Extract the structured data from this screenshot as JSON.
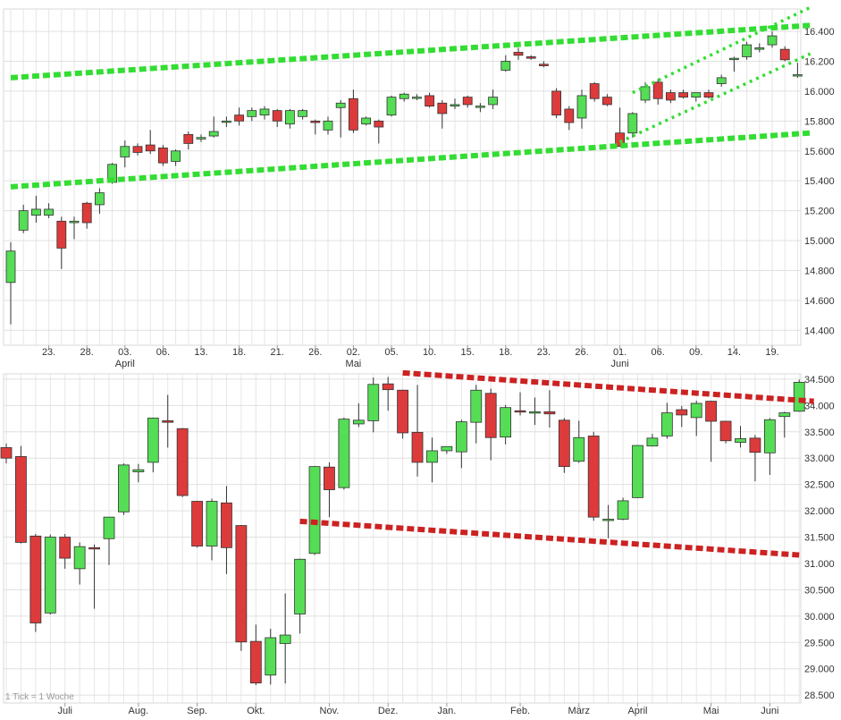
{
  "chart_data": [
    {
      "type": "candlestick",
      "panel": "daily",
      "ylim": [
        14300,
        16550
      ],
      "yticks": [
        14400,
        14600,
        14800,
        15000,
        15200,
        15400,
        15600,
        15800,
        16000,
        16200,
        16400
      ],
      "ytick_labels": [
        "14.400",
        "14.600",
        "14.800",
        "15.000",
        "15.200",
        "15.400",
        "15.600",
        "15.800",
        "16.000",
        "16.200",
        "16.400"
      ],
      "xtick_labels": [
        "23.",
        "28.",
        "03.",
        "06.",
        "13.",
        "18.",
        "21.",
        "26.",
        "02.",
        "05.",
        "10.",
        "15.",
        "18.",
        "23.",
        "26.",
        "01.",
        "06.",
        "09.",
        "14.",
        "19."
      ],
      "xtick_index": [
        3,
        6,
        9,
        12,
        15,
        18,
        21,
        24,
        27,
        30,
        33,
        36,
        39,
        42,
        45,
        48,
        51,
        54,
        57,
        60
      ],
      "month_labels": [
        "April",
        "Mai",
        "Juni"
      ],
      "month_index": [
        9,
        27,
        48
      ],
      "candles": [
        {
          "o": 14720,
          "h": 14990,
          "l": 14440,
          "c": 14930
        },
        {
          "o": 15070,
          "h": 15240,
          "l": 15050,
          "c": 15200
        },
        {
          "o": 15170,
          "h": 15300,
          "l": 15120,
          "c": 15210
        },
        {
          "o": 15170,
          "h": 15250,
          "l": 15150,
          "c": 15210
        },
        {
          "o": 15130,
          "h": 15160,
          "l": 14810,
          "c": 14950
        },
        {
          "o": 15120,
          "h": 15160,
          "l": 15010,
          "c": 15130
        },
        {
          "o": 15250,
          "h": 15260,
          "l": 15080,
          "c": 15120
        },
        {
          "o": 15240,
          "h": 15350,
          "l": 15180,
          "c": 15320
        },
        {
          "o": 15390,
          "h": 15520,
          "l": 15380,
          "c": 15510
        },
        {
          "o": 15560,
          "h": 15670,
          "l": 15490,
          "c": 15630
        },
        {
          "o": 15630,
          "h": 15650,
          "l": 15570,
          "c": 15590
        },
        {
          "o": 15640,
          "h": 15740,
          "l": 15580,
          "c": 15600
        },
        {
          "o": 15620,
          "h": 15640,
          "l": 15500,
          "c": 15520
        },
        {
          "o": 15530,
          "h": 15610,
          "l": 15500,
          "c": 15600
        },
        {
          "o": 15710,
          "h": 15730,
          "l": 15610,
          "c": 15650
        },
        {
          "o": 15680,
          "h": 15710,
          "l": 15660,
          "c": 15690
        },
        {
          "o": 15700,
          "h": 15830,
          "l": 15690,
          "c": 15730
        },
        {
          "o": 15800,
          "h": 15830,
          "l": 15760,
          "c": 15800
        },
        {
          "o": 15840,
          "h": 15890,
          "l": 15770,
          "c": 15800
        },
        {
          "o": 15830,
          "h": 15890,
          "l": 15800,
          "c": 15870
        },
        {
          "o": 15840,
          "h": 15900,
          "l": 15810,
          "c": 15880
        },
        {
          "o": 15870,
          "h": 15880,
          "l": 15760,
          "c": 15800
        },
        {
          "o": 15780,
          "h": 15880,
          "l": 15750,
          "c": 15870
        },
        {
          "o": 15830,
          "h": 15880,
          "l": 15810,
          "c": 15870
        },
        {
          "o": 15800,
          "h": 15810,
          "l": 15710,
          "c": 15790
        },
        {
          "o": 15740,
          "h": 15830,
          "l": 15710,
          "c": 15800
        },
        {
          "o": 15890,
          "h": 15940,
          "l": 15690,
          "c": 15920
        },
        {
          "o": 15950,
          "h": 16010,
          "l": 15720,
          "c": 15740
        },
        {
          "o": 15780,
          "h": 15830,
          "l": 15770,
          "c": 15820
        },
        {
          "o": 15800,
          "h": 15810,
          "l": 15650,
          "c": 15760
        },
        {
          "o": 15840,
          "h": 15970,
          "l": 15830,
          "c": 15960
        },
        {
          "o": 15950,
          "h": 15990,
          "l": 15930,
          "c": 15980
        },
        {
          "o": 15960,
          "h": 15980,
          "l": 15940,
          "c": 15960
        },
        {
          "o": 15970,
          "h": 15990,
          "l": 15890,
          "c": 15900
        },
        {
          "o": 15920,
          "h": 15940,
          "l": 15750,
          "c": 15850
        },
        {
          "o": 15900,
          "h": 15950,
          "l": 15880,
          "c": 15910
        },
        {
          "o": 15960,
          "h": 15970,
          "l": 15890,
          "c": 15910
        },
        {
          "o": 15900,
          "h": 15920,
          "l": 15860,
          "c": 15900
        },
        {
          "o": 15910,
          "h": 16010,
          "l": 15880,
          "c": 15960
        },
        {
          "o": 16140,
          "h": 16240,
          "l": 16130,
          "c": 16200
        },
        {
          "o": 16260,
          "h": 16290,
          "l": 16210,
          "c": 16240
        },
        {
          "o": 16230,
          "h": 16240,
          "l": 16210,
          "c": 16220
        },
        {
          "o": 16180,
          "h": 16200,
          "l": 16160,
          "c": 16170
        },
        {
          "o": 16000,
          "h": 16020,
          "l": 15820,
          "c": 15840
        },
        {
          "o": 15880,
          "h": 15900,
          "l": 15740,
          "c": 15790
        },
        {
          "o": 15820,
          "h": 16010,
          "l": 15750,
          "c": 15970
        },
        {
          "o": 16050,
          "h": 16060,
          "l": 15930,
          "c": 15950
        },
        {
          "o": 15960,
          "h": 15980,
          "l": 15900,
          "c": 15910
        },
        {
          "o": 15720,
          "h": 15890,
          "l": 15650,
          "c": 15630
        },
        {
          "o": 15720,
          "h": 15860,
          "l": 15690,
          "c": 15850
        },
        {
          "o": 15940,
          "h": 16060,
          "l": 15920,
          "c": 16030
        },
        {
          "o": 16060,
          "h": 16080,
          "l": 15910,
          "c": 15950
        },
        {
          "o": 15990,
          "h": 16010,
          "l": 15920,
          "c": 15940
        },
        {
          "o": 15990,
          "h": 16010,
          "l": 15950,
          "c": 15960
        },
        {
          "o": 15960,
          "h": 15990,
          "l": 15930,
          "c": 15990
        },
        {
          "o": 15990,
          "h": 16010,
          "l": 15950,
          "c": 15960
        },
        {
          "o": 16050,
          "h": 16110,
          "l": 16030,
          "c": 16090
        },
        {
          "o": 16220,
          "h": 16230,
          "l": 16130,
          "c": 16220
        },
        {
          "o": 16230,
          "h": 16330,
          "l": 16210,
          "c": 16310
        },
        {
          "o": 16280,
          "h": 16320,
          "l": 16260,
          "c": 16290
        },
        {
          "o": 16310,
          "h": 16400,
          "l": 16290,
          "c": 16370
        },
        {
          "o": 16280,
          "h": 16300,
          "l": 16200,
          "c": 16210
        },
        {
          "o": 16110,
          "h": 16190,
          "l": 16090,
          "c": 16110
        }
      ],
      "trendlines": [
        {
          "color": "#33dd33",
          "style": "dashed",
          "points": [
            [
              0,
              16090
            ],
            [
              63,
              16440
            ]
          ]
        },
        {
          "color": "#33dd33",
          "style": "dashed",
          "points": [
            [
              0,
              15360
            ],
            [
              63,
              15720
            ]
          ]
        },
        {
          "color": "#33dd33",
          "style": "dotted",
          "points": [
            [
              48,
              15660
            ],
            [
              63,
              16250
            ]
          ]
        },
        {
          "color": "#33dd33",
          "style": "dotted",
          "points": [
            [
              49,
              15990
            ],
            [
              63,
              16560
            ]
          ]
        }
      ]
    },
    {
      "type": "candlestick",
      "panel": "weekly",
      "ylim": [
        28350,
        34600
      ],
      "yticks": [
        28500,
        29000,
        29500,
        30000,
        30500,
        31000,
        31500,
        32000,
        32500,
        33000,
        33500,
        34000,
        34500
      ],
      "ytick_labels": [
        "28.500",
        "29.000",
        "29.500",
        "30.000",
        "30.500",
        "31.000",
        "31.500",
        "32.000",
        "32.500",
        "33.000",
        "33.500",
        "34.000",
        "34.500"
      ],
      "xtick_labels": [
        "Juli",
        "Aug.",
        "Sep.",
        "Okt.",
        "Nov.",
        "Dez.",
        "Jan.",
        "Feb.",
        "März",
        "April",
        "Mai",
        "Juni"
      ],
      "xtick_index": [
        4,
        9,
        13,
        17,
        22,
        26,
        30,
        35,
        39,
        43,
        48,
        52
      ],
      "note": "1 Tick = 1 Woche",
      "candles": [
        {
          "o": 33200,
          "h": 33280,
          "l": 32900,
          "c": 33000
        },
        {
          "o": 33030,
          "h": 33230,
          "l": 31380,
          "c": 31400
        },
        {
          "o": 31520,
          "h": 31560,
          "l": 29700,
          "c": 29870
        },
        {
          "o": 30060,
          "h": 31550,
          "l": 30030,
          "c": 31500
        },
        {
          "o": 31500,
          "h": 31560,
          "l": 30900,
          "c": 31100
        },
        {
          "o": 30900,
          "h": 31400,
          "l": 30600,
          "c": 31320
        },
        {
          "o": 31300,
          "h": 31360,
          "l": 30140,
          "c": 31290
        },
        {
          "o": 31470,
          "h": 31880,
          "l": 30970,
          "c": 31880
        },
        {
          "o": 31980,
          "h": 32900,
          "l": 31920,
          "c": 32870
        },
        {
          "o": 32740,
          "h": 32890,
          "l": 32540,
          "c": 32780
        },
        {
          "o": 32920,
          "h": 33770,
          "l": 32730,
          "c": 33760
        },
        {
          "o": 33710,
          "h": 34200,
          "l": 33200,
          "c": 33680
        },
        {
          "o": 33560,
          "h": 33570,
          "l": 32260,
          "c": 32290
        },
        {
          "o": 32180,
          "h": 32190,
          "l": 31300,
          "c": 31330
        },
        {
          "o": 31330,
          "h": 32230,
          "l": 31060,
          "c": 32180
        },
        {
          "o": 32150,
          "h": 32470,
          "l": 30800,
          "c": 31300
        },
        {
          "o": 31720,
          "h": 31730,
          "l": 29340,
          "c": 29510
        },
        {
          "o": 29520,
          "h": 29840,
          "l": 28690,
          "c": 28730
        },
        {
          "o": 28880,
          "h": 29760,
          "l": 28700,
          "c": 29590
        },
        {
          "o": 29480,
          "h": 30430,
          "l": 28720,
          "c": 29640
        },
        {
          "o": 30040,
          "h": 31090,
          "l": 29670,
          "c": 31080
        },
        {
          "o": 31190,
          "h": 32850,
          "l": 31160,
          "c": 32840
        },
        {
          "o": 32830,
          "h": 32920,
          "l": 31880,
          "c": 32400
        },
        {
          "o": 32440,
          "h": 33770,
          "l": 32400,
          "c": 33740
        },
        {
          "o": 33650,
          "h": 34040,
          "l": 33590,
          "c": 33720
        },
        {
          "o": 33710,
          "h": 34530,
          "l": 33490,
          "c": 34400
        },
        {
          "o": 34410,
          "h": 34540,
          "l": 33900,
          "c": 34300
        },
        {
          "o": 34290,
          "h": 34300,
          "l": 33370,
          "c": 33480
        },
        {
          "o": 33490,
          "h": 34390,
          "l": 32650,
          "c": 32920
        },
        {
          "o": 32920,
          "h": 33390,
          "l": 32540,
          "c": 33140
        },
        {
          "o": 33140,
          "h": 33220,
          "l": 33080,
          "c": 33220
        },
        {
          "o": 33120,
          "h": 33730,
          "l": 32810,
          "c": 33690
        },
        {
          "o": 33680,
          "h": 34390,
          "l": 33280,
          "c": 34290
        },
        {
          "o": 34230,
          "h": 34320,
          "l": 32960,
          "c": 33390
        },
        {
          "o": 33400,
          "h": 34010,
          "l": 33260,
          "c": 33960
        },
        {
          "o": 33900,
          "h": 34250,
          "l": 33810,
          "c": 33890
        },
        {
          "o": 33880,
          "h": 34150,
          "l": 33630,
          "c": 33880
        },
        {
          "o": 33880,
          "h": 34290,
          "l": 33580,
          "c": 33840
        },
        {
          "o": 33720,
          "h": 33760,
          "l": 32720,
          "c": 32840
        },
        {
          "o": 32940,
          "h": 33710,
          "l": 32910,
          "c": 33390
        },
        {
          "o": 33420,
          "h": 33500,
          "l": 31810,
          "c": 31880
        },
        {
          "o": 31820,
          "h": 32110,
          "l": 31480,
          "c": 31840
        },
        {
          "o": 31840,
          "h": 32250,
          "l": 31820,
          "c": 32190
        },
        {
          "o": 32250,
          "h": 33250,
          "l": 32240,
          "c": 33240
        },
        {
          "o": 33230,
          "h": 33460,
          "l": 33220,
          "c": 33380
        },
        {
          "o": 33420,
          "h": 34050,
          "l": 33370,
          "c": 33860
        },
        {
          "o": 33920,
          "h": 33990,
          "l": 33590,
          "c": 33820
        },
        {
          "o": 33770,
          "h": 34090,
          "l": 33420,
          "c": 34040
        },
        {
          "o": 34080,
          "h": 34090,
          "l": 32930,
          "c": 33700
        },
        {
          "o": 33700,
          "h": 33710,
          "l": 33280,
          "c": 33330
        },
        {
          "o": 33300,
          "h": 33610,
          "l": 33200,
          "c": 33370
        },
        {
          "o": 33380,
          "h": 33440,
          "l": 32560,
          "c": 33110
        },
        {
          "o": 33100,
          "h": 33760,
          "l": 32680,
          "c": 33730
        },
        {
          "o": 33790,
          "h": 33880,
          "l": 33390,
          "c": 33860
        },
        {
          "o": 33890,
          "h": 34490,
          "l": 33880,
          "c": 34440
        }
      ],
      "trendlines": [
        {
          "color": "#cc2222",
          "style": "dashed",
          "points": [
            [
              27,
              34620
            ],
            [
              55,
              34080
            ]
          ]
        },
        {
          "color": "#cc2222",
          "style": "dashed",
          "points": [
            [
              20,
              31800
            ],
            [
              54,
              31160
            ]
          ]
        }
      ]
    }
  ]
}
